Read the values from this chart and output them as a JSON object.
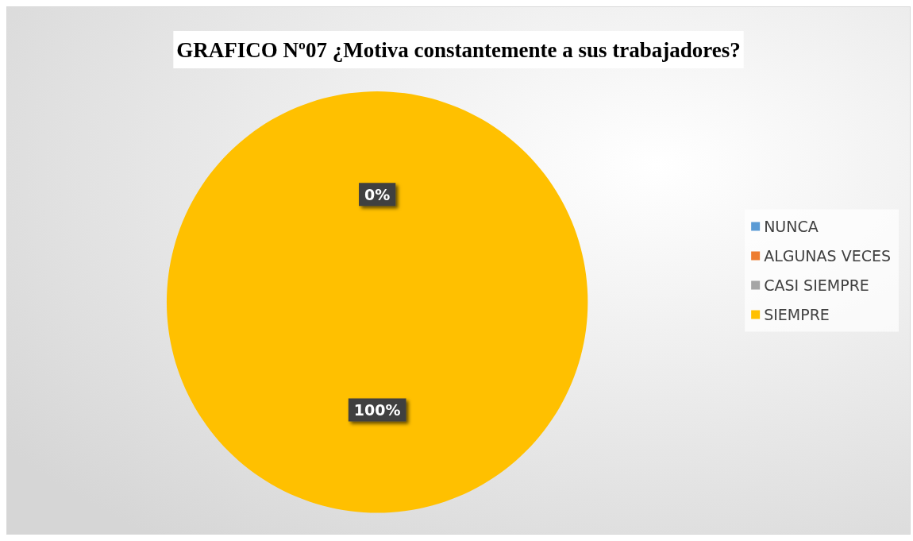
{
  "chart_data": {
    "type": "pie",
    "title": "GRAFICO Nº07 ¿Motiva constantemente a sus trabajadores?",
    "categories": [
      "NUNCA",
      "ALGUNAS VECES",
      "CASI SIEMPRE",
      "SIEMPRE"
    ],
    "values": [
      0,
      0,
      0,
      100
    ],
    "colors": [
      "#5b9bd5",
      "#ed7d31",
      "#a5a5a5",
      "#ffc000"
    ],
    "value_labels": [
      "0%",
      null,
      null,
      "100%"
    ],
    "legend": "right"
  }
}
